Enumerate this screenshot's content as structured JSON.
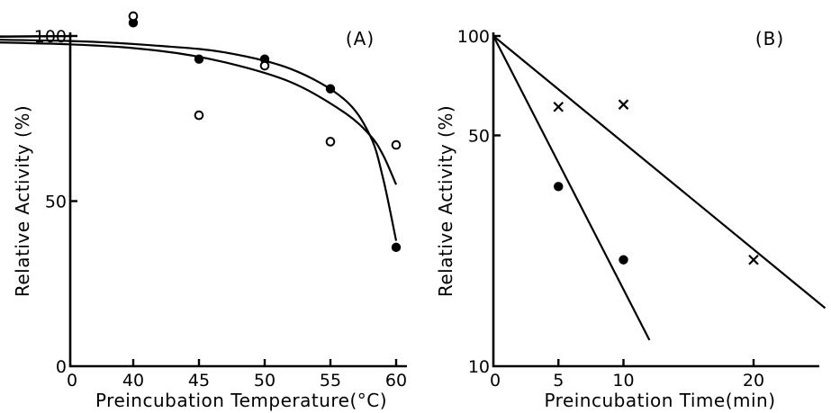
{
  "chart_data": [
    {
      "type": "scatter",
      "panel_label": "(A)",
      "xlabel": "Preincubation Temperature(°C)",
      "ylabel": "Relative Activity (%)",
      "xlim": [
        0,
        60
      ],
      "ylim": [
        0,
        100
      ],
      "x_ticks": [
        {
          "value": 0,
          "label": "0"
        },
        {
          "value": 40,
          "label": "40"
        },
        {
          "value": 45,
          "label": "45"
        },
        {
          "value": 50,
          "label": "50"
        },
        {
          "value": 55,
          "label": "55"
        },
        {
          "value": 60,
          "label": "60"
        }
      ],
      "y_ticks": [
        {
          "value": 0,
          "label": "0"
        },
        {
          "value": 50,
          "label": "50"
        },
        {
          "value": 100,
          "label": "100"
        }
      ],
      "series": [
        {
          "marker": "filled-circle",
          "points": [
            [
              40,
              104
            ],
            [
              45,
              93
            ],
            [
              50,
              93
            ],
            [
              55,
              84
            ],
            [
              60,
              36
            ]
          ],
          "fit": [
            [
              0,
              100
            ],
            [
              20,
              99.5
            ],
            [
              35,
              98.5
            ],
            [
              42,
              97
            ],
            [
              47,
              95
            ],
            [
              52,
              90
            ],
            [
              56,
              81
            ],
            [
              58,
              70
            ],
            [
              59,
              57
            ],
            [
              60,
              38
            ]
          ]
        },
        {
          "marker": "open-circle",
          "points": [
            [
              40,
              106
            ],
            [
              45,
              76
            ],
            [
              50,
              91
            ],
            [
              55,
              68
            ],
            [
              60,
              67
            ]
          ],
          "fit": [
            [
              0,
              100
            ],
            [
              20,
              99
            ],
            [
              35,
              97.5
            ],
            [
              42,
              95.5
            ],
            [
              47,
              92
            ],
            [
              52,
              86
            ],
            [
              56,
              77
            ],
            [
              58,
              70
            ],
            [
              59,
              64
            ],
            [
              60,
              55
            ]
          ]
        }
      ]
    },
    {
      "type": "scatter",
      "panel_label": "(B)",
      "xlabel": "Preincubation  Time(min)",
      "ylabel": "Relative Activity (%)",
      "yscale": "log",
      "xlim": [
        0,
        26
      ],
      "ylim": [
        10,
        100
      ],
      "x_ticks": [
        {
          "value": 0,
          "label": "0"
        },
        {
          "value": 5,
          "label": "5"
        },
        {
          "value": 10,
          "label": "10"
        },
        {
          "value": 20,
          "label": "20"
        }
      ],
      "y_ticks": [
        {
          "value": 10,
          "label": "10"
        },
        {
          "value": 50,
          "label": "50"
        },
        {
          "value": 100,
          "label": "100"
        }
      ],
      "series": [
        {
          "marker": "cross",
          "points": [
            [
              5,
              61
            ],
            [
              10,
              62
            ],
            [
              20,
              21
            ]
          ],
          "fit": [
            [
              0,
              100
            ],
            [
              25.5,
              15
            ]
          ]
        },
        {
          "marker": "filled-circle",
          "points": [
            [
              5,
              35
            ],
            [
              10,
              21
            ]
          ],
          "fit": [
            [
              0,
              100
            ],
            [
              12,
              12
            ]
          ]
        }
      ]
    }
  ]
}
